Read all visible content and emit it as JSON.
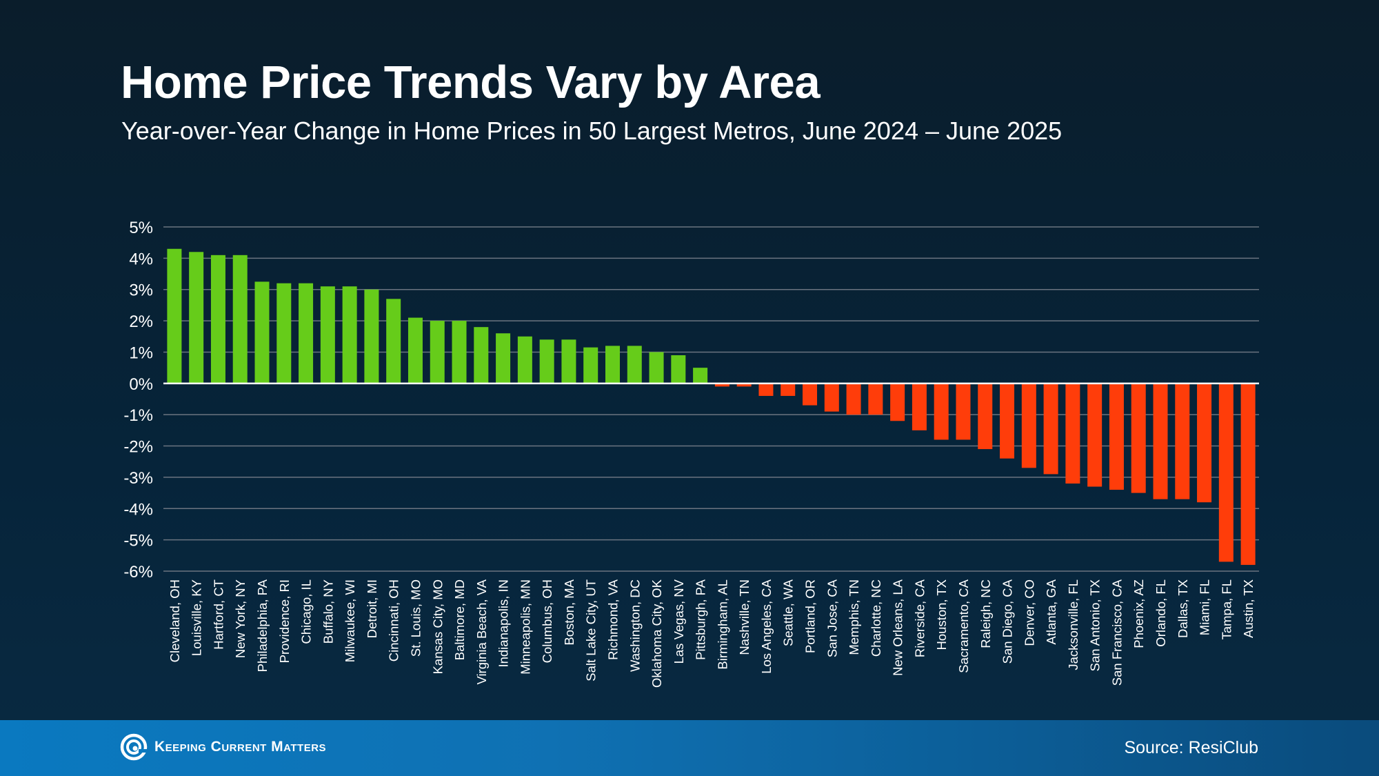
{
  "slide": {
    "title": "Home Price Trends Vary by Area",
    "subtitle": "Year-over-Year Change in Home Prices in 50 Largest Metros, June 2024 – June 2025"
  },
  "footer": {
    "logo_text": "Keeping Current Matters",
    "source": "Source: ResiClub"
  },
  "chart_data": {
    "type": "bar",
    "title": "Home Price Trends Vary by Area",
    "subtitle": "Year-over-Year Change in Home Prices in 50 Largest Metros, June 2024 – June 2025",
    "unit": "%",
    "ylim": [
      -6,
      5
    ],
    "yticks": [
      5,
      4,
      3,
      2,
      1,
      0,
      -1,
      -2,
      -3,
      -4,
      -5,
      -6
    ],
    "ytick_labels": [
      "5%",
      "4%",
      "3%",
      "2%",
      "1%",
      "0%",
      "-1%",
      "-2%",
      "-3%",
      "-4%",
      "-5%",
      "-6%"
    ],
    "grid": true,
    "colors": {
      "positive": "#66cc1a",
      "negative": "#ff3d0a",
      "grid": "#6b7480",
      "zero_line": "#ffffff"
    },
    "categories": [
      "Cleveland, OH",
      "Louisville, KY",
      "Hartford, CT",
      "New York, NY",
      "Philadelphia, PA",
      "Providence, RI",
      "Chicago, IL",
      "Buffalo, NY",
      "Milwaukee, WI",
      "Detroit, MI",
      "Cincinnati, OH",
      "St. Louis, MO",
      "Kansas City, MO",
      "Baltimore, MD",
      "Virginia Beach, VA",
      "Indianapolis, IN",
      "Minneapolis, MN",
      "Columbus, OH",
      "Boston, MA",
      "Salt Lake City, UT",
      "Richmond, VA",
      "Washington, DC",
      "Oklahoma City, OK",
      "Las Vegas, NV",
      "Pittsburgh, PA",
      "Birmingham, AL",
      "Nashville, TN",
      "Los Angeles, CA",
      "Seattle, WA",
      "Portland, OR",
      "San Jose, CA",
      "Memphis, TN",
      "Charlotte, NC",
      "New Orleans, LA",
      "Riverside, CA",
      "Houston, TX",
      "Sacramento, CA",
      "Raleigh, NC",
      "San Diego, CA",
      "Denver, CO",
      "Atlanta, GA",
      "Jacksonville, FL",
      "San Antonio, TX",
      "San Francisco, CA",
      "Phoenix, AZ",
      "Orlando, FL",
      "Dallas, TX",
      "Miami, FL",
      "Tampa, FL",
      "Austin, TX"
    ],
    "values": [
      4.3,
      4.2,
      4.1,
      4.1,
      3.25,
      3.2,
      3.2,
      3.1,
      3.1,
      3.0,
      2.7,
      2.1,
      2.0,
      2.0,
      1.8,
      1.6,
      1.5,
      1.4,
      1.4,
      1.15,
      1.2,
      1.2,
      1.0,
      0.9,
      0.5,
      -0.1,
      -0.1,
      -0.4,
      -0.4,
      -0.7,
      -0.9,
      -1.0,
      -1.0,
      -1.2,
      -1.5,
      -1.8,
      -1.8,
      -2.1,
      -2.4,
      -2.7,
      -2.9,
      -3.2,
      -3.3,
      -3.4,
      -3.5,
      -3.7,
      -3.7,
      -3.8,
      -5.7,
      -5.8
    ]
  }
}
